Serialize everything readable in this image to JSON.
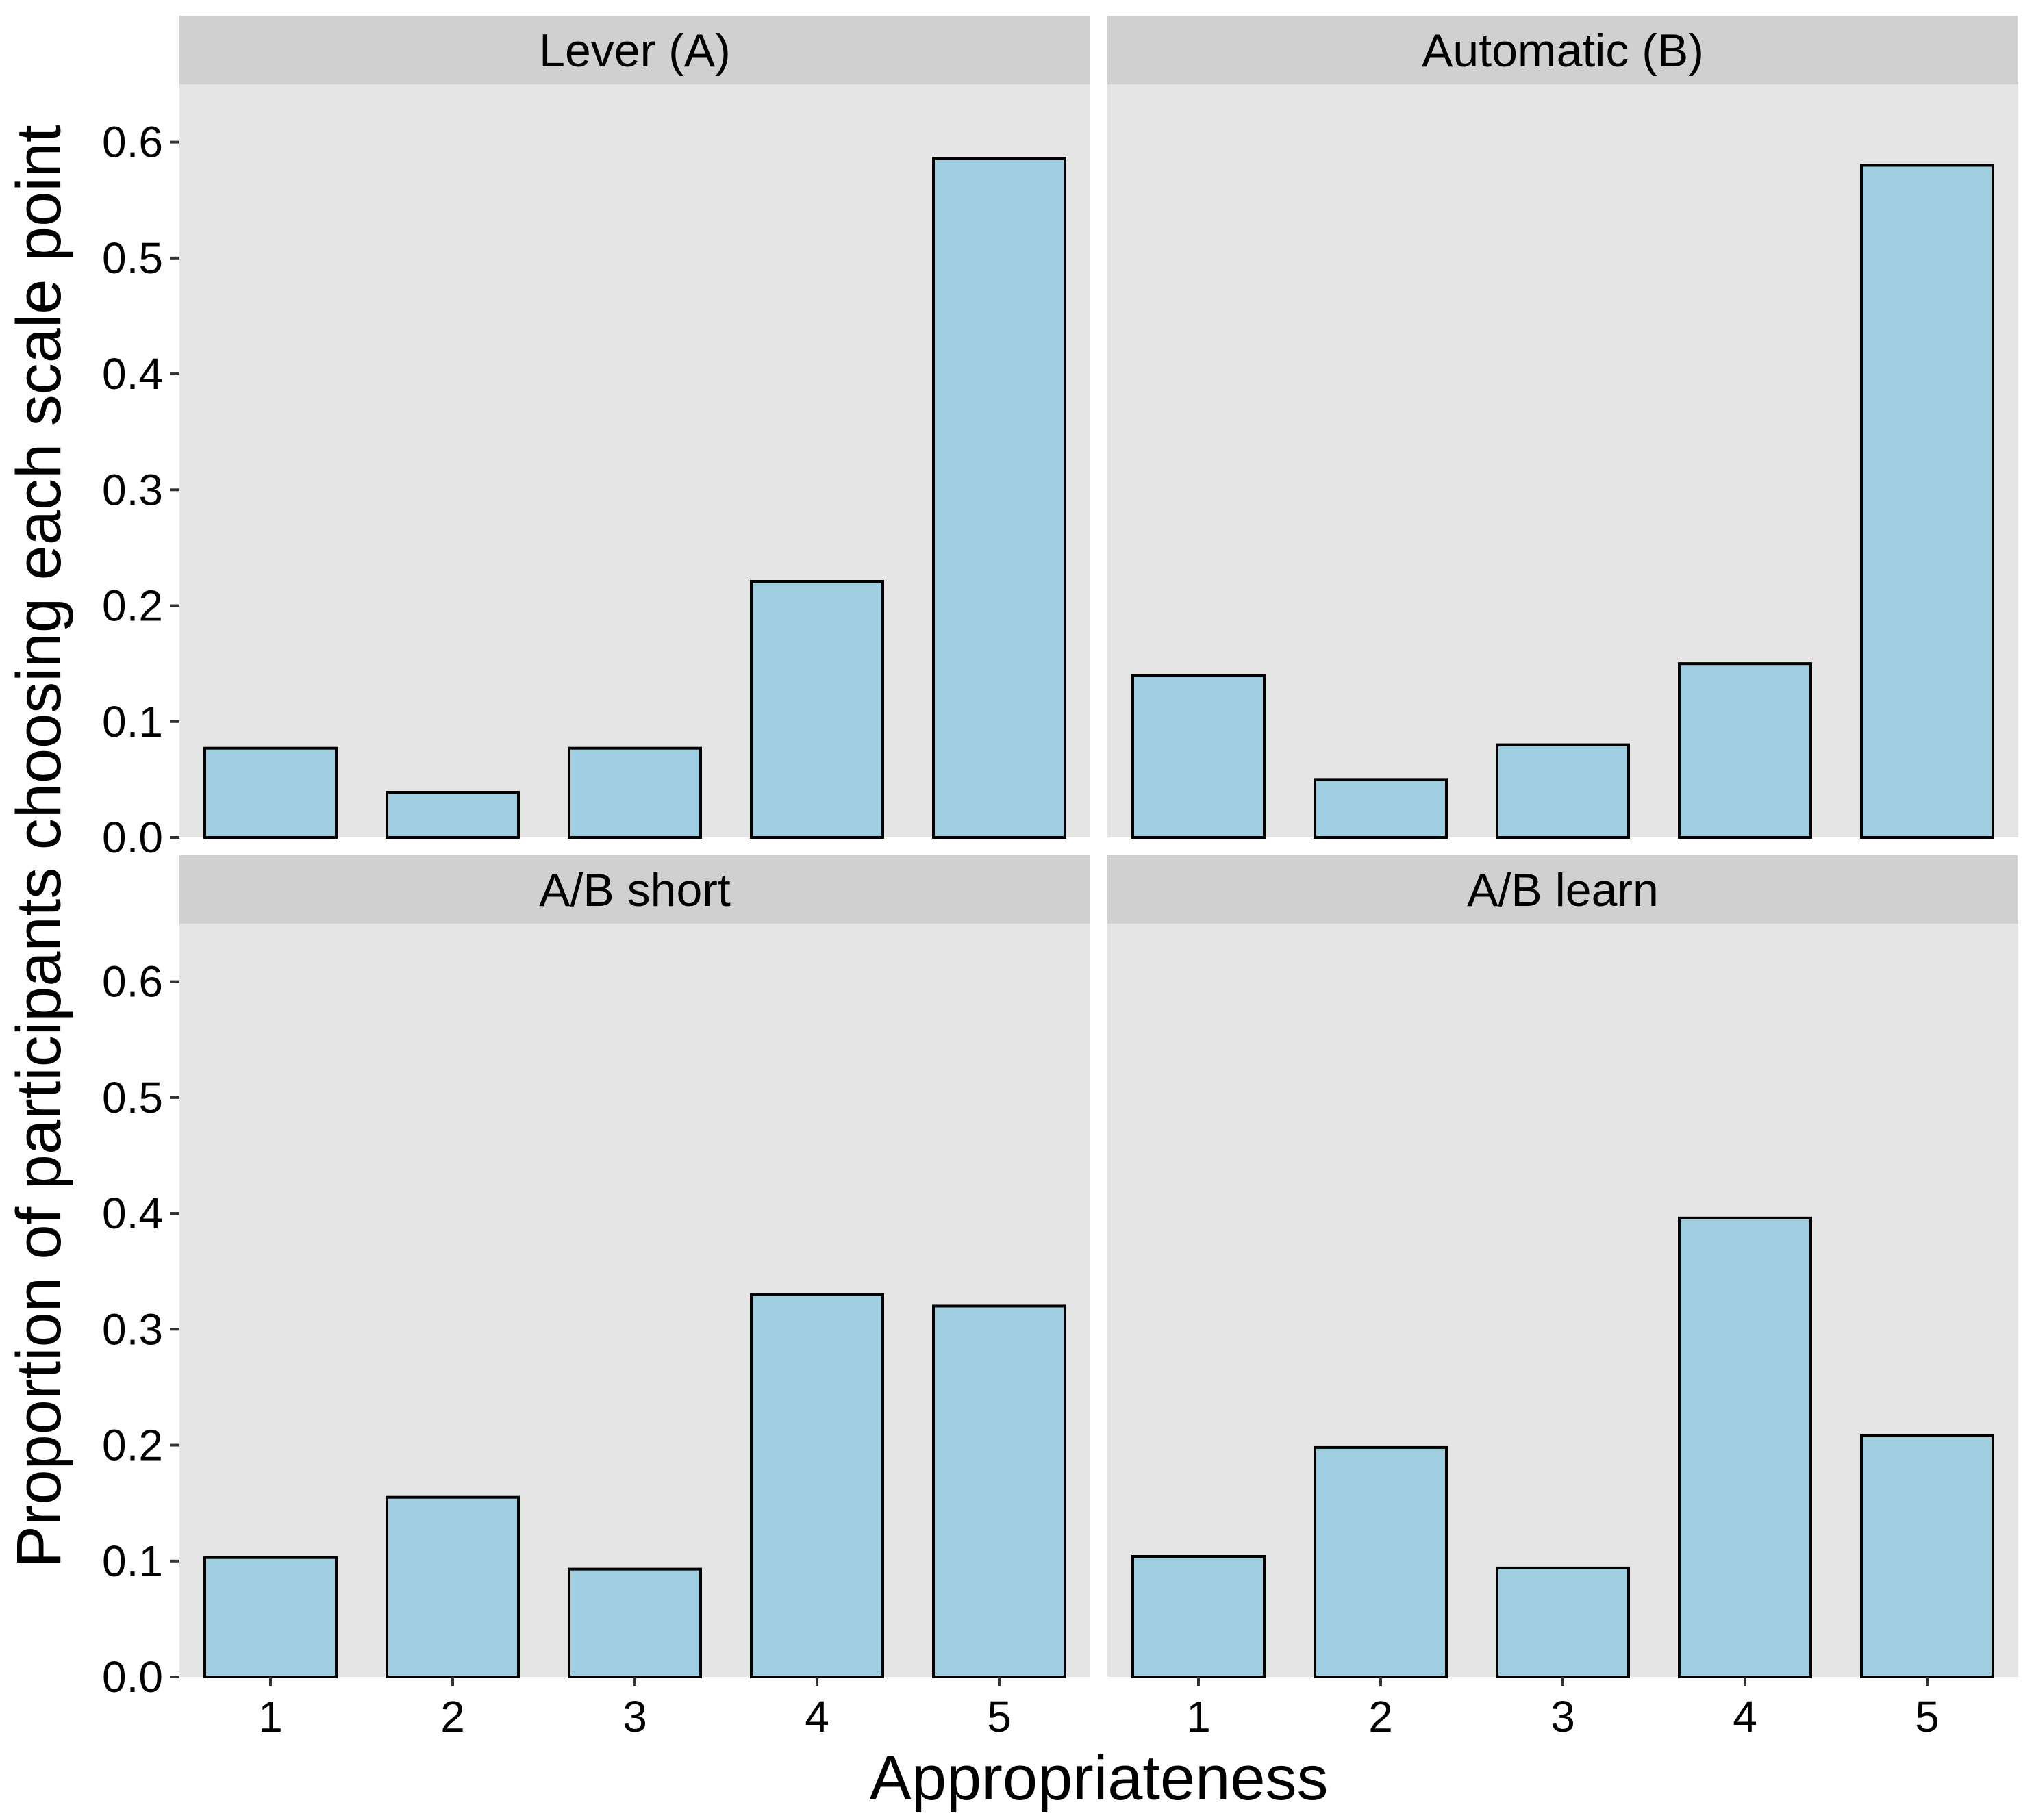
{
  "chart_data": {
    "type": "bar",
    "layout": "facet-grid-2x2",
    "xlabel": "Appropriateness",
    "ylabel": "Proportion of participants choosing each scale point",
    "categories": [
      "1",
      "2",
      "3",
      "4",
      "5"
    ],
    "ylim": [
      0,
      0.65
    ],
    "yticks": [
      "0.0",
      "0.1",
      "0.2",
      "0.3",
      "0.4",
      "0.5",
      "0.6"
    ],
    "grid": false,
    "colors": {
      "bar_fill": "#9ecee0",
      "bar_stroke": "#000000",
      "panel_bg": "#e5e5e5",
      "strip_bg": "#d0d0d0"
    },
    "panels": [
      {
        "title": "Lever (A)",
        "values": [
          0.077,
          0.039,
          0.077,
          0.221,
          0.586
        ]
      },
      {
        "title": "Automatic (B)",
        "values": [
          0.14,
          0.05,
          0.08,
          0.15,
          0.58
        ]
      },
      {
        "title": "A/B short",
        "values": [
          0.103,
          0.155,
          0.093,
          0.33,
          0.32
        ]
      },
      {
        "title": "A/B learn",
        "values": [
          0.104,
          0.198,
          0.094,
          0.396,
          0.208
        ]
      }
    ]
  }
}
